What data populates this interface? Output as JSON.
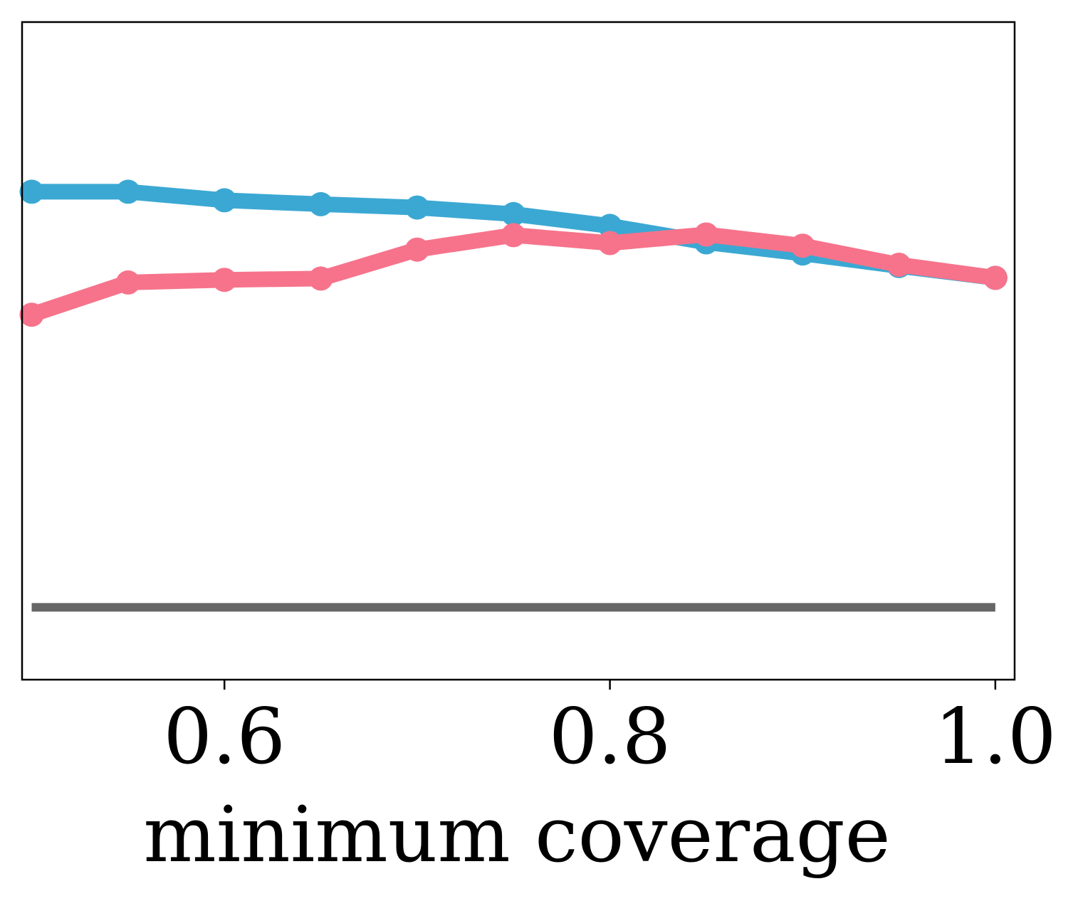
{
  "chart_data": {
    "type": "line",
    "title": "",
    "xlabel": "minimum coverage",
    "ylabel": "",
    "xlim": [
      0.495,
      1.01
    ],
    "ylim": [
      0,
      1
    ],
    "xticks": [
      {
        "value": 0.6,
        "label": "0.6"
      },
      {
        "value": 0.8,
        "label": "0.8"
      },
      {
        "value": 1.0,
        "label": "1.0"
      }
    ],
    "grid": false,
    "legend": "none",
    "x": [
      0.5,
      0.55,
      0.6,
      0.65,
      0.7,
      0.75,
      0.8,
      0.85,
      0.9,
      0.95,
      1.0
    ],
    "series": [
      {
        "color": "#3ba8d3",
        "values": [
          0.742,
          0.742,
          0.729,
          0.723,
          0.718,
          0.708,
          0.69,
          0.665,
          0.648,
          0.629,
          0.611
        ]
      },
      {
        "color": "#f6738b",
        "values": [
          0.555,
          0.604,
          0.608,
          0.61,
          0.654,
          0.676,
          0.664,
          0.677,
          0.66,
          0.631,
          0.611
        ]
      },
      {
        "color": "#666666",
        "values": [
          0.11,
          0.11,
          0.11,
          0.11,
          0.11,
          0.11,
          0.11,
          0.11,
          0.11,
          0.11,
          0.11
        ]
      }
    ]
  }
}
